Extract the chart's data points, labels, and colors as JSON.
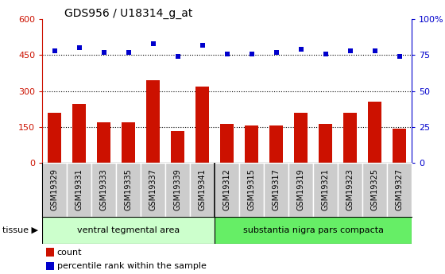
{
  "title": "GDS956 / U18314_g_at",
  "samples": [
    "GSM19329",
    "GSM19331",
    "GSM19333",
    "GSM19335",
    "GSM19337",
    "GSM19339",
    "GSM19341",
    "GSM19312",
    "GSM19315",
    "GSM19317",
    "GSM19319",
    "GSM19321",
    "GSM19323",
    "GSM19325",
    "GSM19327"
  ],
  "counts": [
    210,
    245,
    170,
    170,
    345,
    135,
    320,
    162,
    157,
    155,
    210,
    162,
    210,
    255,
    143
  ],
  "percentiles": [
    78,
    80,
    77,
    77,
    83,
    74,
    82,
    76,
    76,
    77,
    79,
    76,
    78,
    78,
    74
  ],
  "group1_label": "ventral tegmental area",
  "group2_label": "substantia nigra pars compacta",
  "group1_count": 7,
  "group2_count": 8,
  "bar_color": "#cc1100",
  "dot_color": "#0000cc",
  "left_ylim": [
    0,
    600
  ],
  "right_ylim": [
    0,
    100
  ],
  "left_yticks": [
    0,
    150,
    300,
    450,
    600
  ],
  "right_yticks": [
    0,
    25,
    50,
    75,
    100
  ],
  "right_yticklabels": [
    "0",
    "25",
    "50",
    "75",
    "100%"
  ],
  "tissue_label": "tissue",
  "legend1": "count",
  "legend2": "percentile rank within the sample",
  "bg_color_group1": "#ccffcc",
  "bg_color_group2": "#66ee66",
  "tick_bg_color": "#cccccc",
  "tick_border_color": "#aaaaaa",
  "white": "#ffffff"
}
